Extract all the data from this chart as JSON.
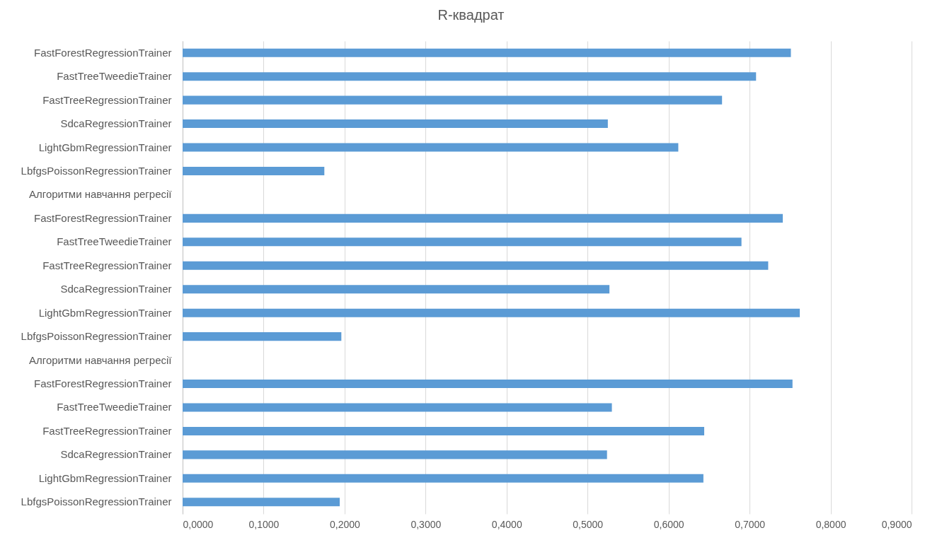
{
  "chart_data": {
    "type": "bar",
    "orientation": "horizontal",
    "title": "R-квадрат",
    "categories": [
      "FastForestRegressionTrainer",
      "FastTreeTweedieTrainer",
      "FastTreeRegressionTrainer",
      "SdcaRegressionTrainer",
      "LightGbmRegressionTrainer",
      "LbfgsPoissonRegressionTrainer",
      "Алгоритми навчання регресії",
      "FastForestRegressionTrainer",
      "FastTreeTweedieTrainer",
      "FastTreeRegressionTrainer",
      "SdcaRegressionTrainer",
      "LightGbmRegressionTrainer",
      "LbfgsPoissonRegressionTrainer",
      "Алгоритми навчання регресії",
      "FastForestRegressionTrainer",
      "FastTreeTweedieTrainer",
      "FastTreeRegressionTrainer",
      "SdcaRegressionTrainer",
      "LightGbmRegressionTrainer",
      "LbfgsPoissonRegressionTrainer"
    ],
    "values": [
      0.751,
      0.708,
      0.666,
      0.525,
      0.612,
      0.175,
      null,
      0.741,
      0.69,
      0.723,
      0.527,
      0.762,
      0.196,
      null,
      0.753,
      0.53,
      0.644,
      0.524,
      0.643,
      0.194
    ],
    "color": "#5b9bd5",
    "xlim": [
      0,
      0.9
    ],
    "xticks": [
      {
        "value": 0,
        "label": "0,0000"
      },
      {
        "value": 0.1,
        "label": "0,1000"
      },
      {
        "value": 0.2,
        "label": "0,2000"
      },
      {
        "value": 0.3,
        "label": "0,3000"
      },
      {
        "value": 0.4,
        "label": "0,4000"
      },
      {
        "value": 0.5,
        "label": "0,5000"
      },
      {
        "value": 0.6,
        "label": "0,6000"
      },
      {
        "value": 0.7,
        "label": "0,7000"
      },
      {
        "value": 0.8,
        "label": "0,8000"
      },
      {
        "value": 0.9,
        "label": "0,9000"
      }
    ],
    "grid": "x"
  }
}
